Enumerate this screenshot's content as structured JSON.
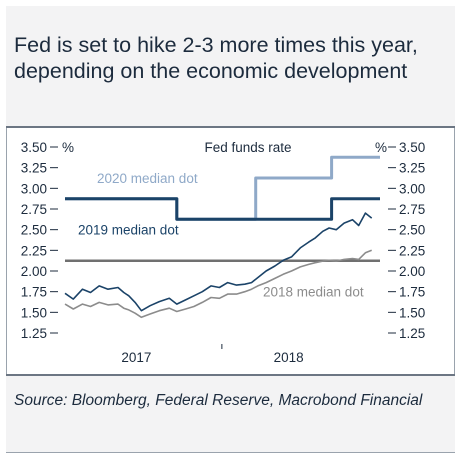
{
  "title": "Fed is set to hike 2-3 more times this year, depending on the economic development",
  "source": "Source: Bloomberg, Federal Reserve, Macrobond Financial",
  "chart_data": {
    "type": "line",
    "title": "Fed funds rate",
    "left_unit": "%",
    "right_unit": "%",
    "ylim": [
      1.25,
      3.5
    ],
    "yticks": [
      "3.50",
      "3.25",
      "3.00",
      "2.75",
      "2.50",
      "2.25",
      "2.00",
      "1.75",
      "1.50",
      "1.25"
    ],
    "xlim": [
      "2016-06-20",
      "2018-07-15"
    ],
    "xticks": [
      {
        "label": "2017",
        "x": "2017-01-01"
      },
      {
        "label": "2018",
        "x": "2018-01-01"
      }
    ],
    "grid": false,
    "colors": {
      "series_navy": "#1b4368",
      "series_gray": "#8c8c8c",
      "dot_2020": "#8fa9c8",
      "dot_2019": "#1b4368",
      "dot_2018": "#707070"
    },
    "annotations": [
      {
        "text": "2020 median dot",
        "color": "#8fa9c8"
      },
      {
        "text": "2019 median dot",
        "color": "#1b4368"
      },
      {
        "text": "2018 median dot",
        "color": "#8c8c8c"
      }
    ],
    "series": [
      {
        "key": "dot2020",
        "style": "step",
        "x": [
          "2016-06-20",
          "2016-12-14",
          "2017-03-15",
          "2017-09-20",
          "2018-03-21",
          "2018-07-15"
        ],
        "values": [
          2.875,
          2.875,
          2.625,
          3.125,
          3.375,
          3.375
        ]
      },
      {
        "key": "dot2019",
        "style": "step",
        "x": [
          "2016-06-20",
          "2016-06-28",
          "2016-12-14",
          "2017-03-15",
          "2017-09-20",
          "2018-03-21",
          "2018-07-15"
        ],
        "values": [
          2.875,
          2.875,
          2.875,
          2.625,
          2.625,
          2.875,
          2.875
        ]
      },
      {
        "key": "dot2018",
        "style": "step",
        "x": [
          "2016-06-20",
          "2018-07-15"
        ],
        "values": [
          2.125,
          2.125
        ]
      },
      {
        "key": "navy",
        "style": "line",
        "x": [
          "2016-06-20",
          "2016-07-10",
          "2016-08-01",
          "2016-08-20",
          "2016-09-10",
          "2016-10-01",
          "2016-10-25",
          "2016-11-08",
          "2016-11-20",
          "2016-12-05",
          "2016-12-20",
          "2017-01-10",
          "2017-02-01",
          "2017-02-25",
          "2017-03-15",
          "2017-04-05",
          "2017-04-25",
          "2017-05-15",
          "2017-06-05",
          "2017-06-25",
          "2017-07-15",
          "2017-08-05",
          "2017-08-25",
          "2017-09-10",
          "2017-09-25",
          "2017-10-15",
          "2017-11-05",
          "2017-11-25",
          "2017-12-15",
          "2018-01-05",
          "2018-01-25",
          "2018-02-10",
          "2018-02-28",
          "2018-03-15",
          "2018-04-01",
          "2018-04-20",
          "2018-05-10",
          "2018-05-25",
          "2018-06-10",
          "2018-06-25"
        ],
        "values": [
          1.73,
          1.66,
          1.78,
          1.74,
          1.82,
          1.78,
          1.8,
          1.74,
          1.7,
          1.62,
          1.52,
          1.58,
          1.63,
          1.67,
          1.6,
          1.65,
          1.7,
          1.75,
          1.82,
          1.8,
          1.86,
          1.83,
          1.84,
          1.86,
          1.92,
          2.0,
          2.06,
          2.13,
          2.17,
          2.28,
          2.35,
          2.4,
          2.48,
          2.52,
          2.5,
          2.58,
          2.62,
          2.55,
          2.7,
          2.64
        ]
      },
      {
        "key": "gray",
        "style": "line",
        "x": [
          "2016-06-20",
          "2016-07-10",
          "2016-08-01",
          "2016-08-20",
          "2016-09-10",
          "2016-10-01",
          "2016-10-25",
          "2016-11-08",
          "2016-11-20",
          "2016-12-05",
          "2016-12-20",
          "2017-01-10",
          "2017-02-01",
          "2017-02-25",
          "2017-03-15",
          "2017-04-05",
          "2017-04-25",
          "2017-05-15",
          "2017-06-05",
          "2017-06-25",
          "2017-07-15",
          "2017-08-05",
          "2017-08-25",
          "2017-09-10",
          "2017-09-25",
          "2017-10-15",
          "2017-11-05",
          "2017-11-25",
          "2017-12-15",
          "2018-01-05",
          "2018-01-25",
          "2018-02-10",
          "2018-02-28",
          "2018-03-15",
          "2018-04-01",
          "2018-04-20",
          "2018-05-10",
          "2018-05-25",
          "2018-06-10",
          "2018-06-25"
        ],
        "values": [
          1.6,
          1.54,
          1.6,
          1.57,
          1.62,
          1.59,
          1.6,
          1.55,
          1.53,
          1.49,
          1.44,
          1.48,
          1.52,
          1.55,
          1.51,
          1.54,
          1.57,
          1.62,
          1.68,
          1.67,
          1.72,
          1.72,
          1.75,
          1.78,
          1.82,
          1.86,
          1.91,
          1.96,
          2.0,
          2.05,
          2.08,
          2.1,
          2.12,
          2.13,
          2.12,
          2.14,
          2.15,
          2.14,
          2.22,
          2.25
        ]
      }
    ]
  }
}
